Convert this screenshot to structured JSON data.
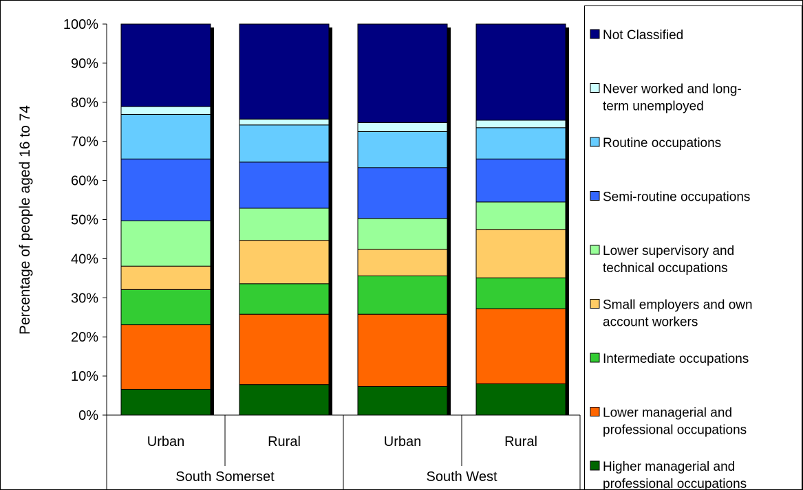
{
  "chart_data": {
    "type": "bar",
    "stacked": true,
    "percent_stacked": true,
    "ylabel": "Percentage of people aged 16 to 74",
    "ylim": [
      0,
      100
    ],
    "yticks": [
      "0%",
      "10%",
      "20%",
      "30%",
      "40%",
      "50%",
      "60%",
      "70%",
      "80%",
      "90%",
      "100%"
    ],
    "groups": [
      {
        "label": "South Somerset",
        "categories": [
          "Urban",
          "Rural"
        ]
      },
      {
        "label": "South West",
        "categories": [
          "Urban",
          "Rural"
        ]
      }
    ],
    "categories": [
      "Urban",
      "Rural",
      "Urban",
      "Rural"
    ],
    "legend_position": "right",
    "grid": false,
    "series": [
      {
        "name": "Higher managerial and professional occupations",
        "color": "#006600",
        "values": [
          6.6,
          7.8,
          7.3,
          8.0
        ]
      },
      {
        "name": "Lower managerial and professional occupations",
        "color": "#FF6600",
        "values": [
          16.5,
          18.0,
          18.5,
          19.2
        ]
      },
      {
        "name": "Intermediate occupations",
        "color": "#33CC33",
        "values": [
          9.0,
          7.8,
          9.8,
          7.9
        ]
      },
      {
        "name": "Small employers and own account workers",
        "color": "#FFCC66",
        "values": [
          6.0,
          11.1,
          6.8,
          12.4
        ]
      },
      {
        "name": "Lower supervisory and technical occupations",
        "color": "#99FF99",
        "values": [
          11.6,
          8.2,
          7.9,
          7.0
        ]
      },
      {
        "name": "Semi-routine occupations",
        "color": "#3366FF",
        "values": [
          15.8,
          11.8,
          13.0,
          11.0
        ]
      },
      {
        "name": "Routine occupations",
        "color": "#66CCFF",
        "values": [
          11.4,
          9.5,
          9.2,
          8.0
        ]
      },
      {
        "name": "Never worked and long-term unemployed",
        "color": "#CCFFFF",
        "values": [
          2.0,
          1.5,
          2.3,
          1.9
        ]
      },
      {
        "name": "Not Classified",
        "color": "#000080",
        "values": [
          21.1,
          24.3,
          25.2,
          24.6
        ]
      }
    ]
  }
}
